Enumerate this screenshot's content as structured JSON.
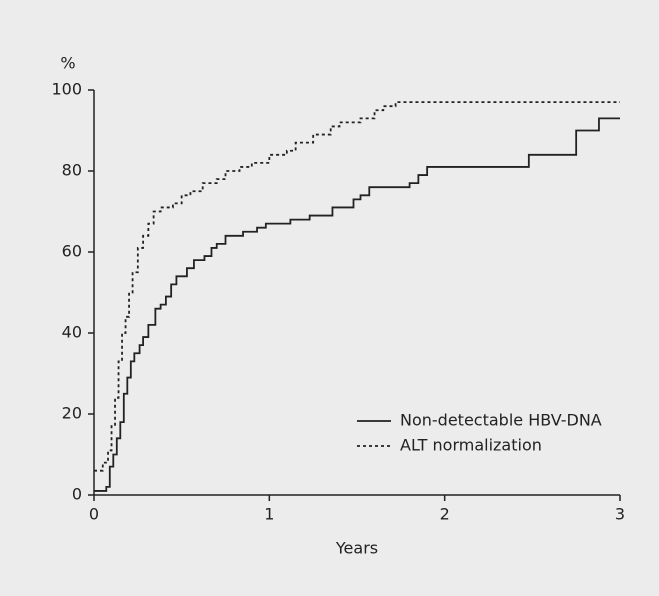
{
  "chart_data": {
    "type": "step-line",
    "y_label": "%",
    "x_label": "Years",
    "xlim": [
      0,
      3
    ],
    "xticks": [
      0,
      1,
      2,
      3
    ],
    "ylim": [
      0,
      100
    ],
    "yticks": [
      0,
      20,
      40,
      60,
      80,
      100
    ],
    "grid": false,
    "legend": "lower right",
    "series": [
      {
        "name": "Non-detectable HBV-DNA",
        "color": "#222222",
        "dash": "solid",
        "x": [
          0,
          0.07,
          0.09,
          0.11,
          0.13,
          0.15,
          0.17,
          0.19,
          0.21,
          0.23,
          0.26,
          0.28,
          0.31,
          0.35,
          0.38,
          0.41,
          0.44,
          0.47,
          0.53,
          0.57,
          0.63,
          0.67,
          0.7,
          0.75,
          0.85,
          0.93,
          0.98,
          1.12,
          1.23,
          1.36,
          1.48,
          1.52,
          1.57,
          1.8,
          1.85,
          1.9,
          2.3,
          2.48,
          2.75,
          2.88,
          3.0
        ],
        "values": [
          1,
          2,
          7,
          10,
          14,
          18,
          25,
          29,
          33,
          35,
          37,
          39,
          42,
          46,
          47,
          49,
          52,
          54,
          56,
          58,
          59,
          61,
          62,
          64,
          65,
          66,
          67,
          68,
          69,
          71,
          73,
          74,
          76,
          77,
          79,
          81,
          81,
          84,
          90,
          93,
          93
        ]
      },
      {
        "name": "ALT normalization",
        "color": "#222222",
        "dash": "dotted",
        "x": [
          0,
          0.05,
          0.08,
          0.1,
          0.12,
          0.14,
          0.16,
          0.18,
          0.2,
          0.22,
          0.25,
          0.28,
          0.31,
          0.34,
          0.38,
          0.45,
          0.5,
          0.55,
          0.62,
          0.7,
          0.75,
          0.83,
          0.9,
          1.0,
          1.1,
          1.15,
          1.25,
          1.35,
          1.4,
          1.52,
          1.6,
          1.65,
          1.72,
          3.0
        ],
        "values": [
          6,
          8,
          11,
          17,
          24,
          33,
          40,
          44,
          50,
          55,
          61,
          64,
          67,
          70,
          71,
          72,
          74,
          75,
          77,
          78,
          80,
          81,
          82,
          84,
          85,
          87,
          89,
          91,
          92,
          93,
          95,
          96,
          97,
          97
        ]
      }
    ]
  }
}
